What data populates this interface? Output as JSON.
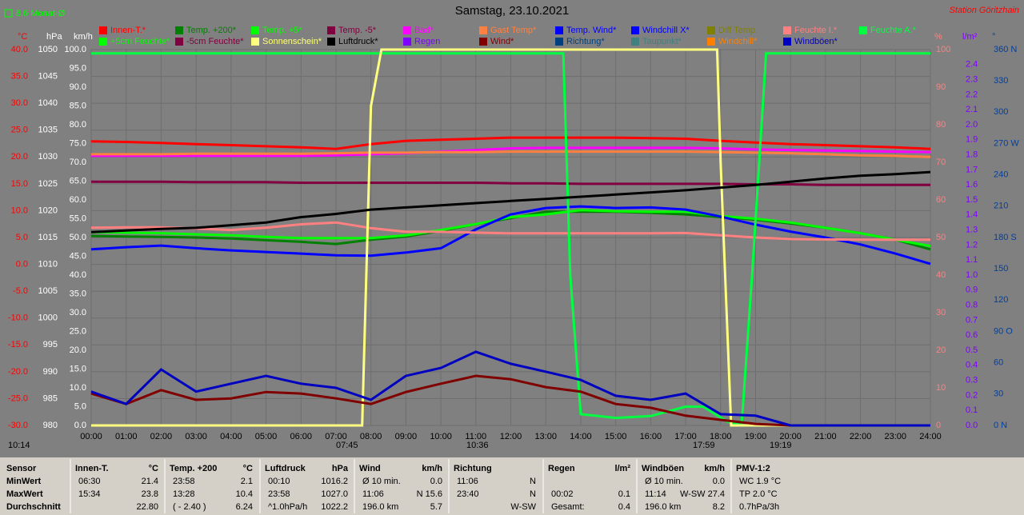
{
  "header": {
    "note": "8.6 Monat-Ø",
    "station": "Station Göritzhain"
  },
  "markers": [
    "10:14",
    "07:45",
    "10:36",
    "17:59",
    "19:19"
  ],
  "chart_data": {
    "type": "line",
    "title": "Samstag, 23.10.2021",
    "xlim": [
      0,
      24
    ],
    "xticks": [
      {
        "value": 0,
        "label": "00:00"
      },
      {
        "value": 1,
        "label": "01:00"
      },
      {
        "value": 2,
        "label": "02:00"
      },
      {
        "value": 3,
        "label": "03:00"
      },
      {
        "value": 4,
        "label": "04:00"
      },
      {
        "value": 5,
        "label": "05:00"
      },
      {
        "value": 6,
        "label": "06:00"
      },
      {
        "value": 7,
        "label": "07:00"
      },
      {
        "value": 8,
        "label": "08:00"
      },
      {
        "value": 9,
        "label": "09:00"
      },
      {
        "value": 10,
        "label": "10:00"
      },
      {
        "value": 11,
        "label": "11:00"
      },
      {
        "value": 12,
        "label": "12:00"
      },
      {
        "value": 13,
        "label": "13:00"
      },
      {
        "value": 14,
        "label": "14:00"
      },
      {
        "value": 15,
        "label": "15:00"
      },
      {
        "value": 16,
        "label": "16:00"
      },
      {
        "value": 17,
        "label": "17:00"
      },
      {
        "value": 18,
        "label": "18:00"
      },
      {
        "value": 19,
        "label": "19:00"
      },
      {
        "value": 20,
        "label": "20:00"
      },
      {
        "value": 21,
        "label": "21:00"
      },
      {
        "value": 22,
        "label": "22:00"
      },
      {
        "value": 23,
        "label": "23:00"
      },
      {
        "value": 24,
        "label": "24:00"
      }
    ],
    "x": [
      0,
      1,
      2,
      3,
      4,
      5,
      6,
      7,
      8,
      9,
      10,
      11,
      12,
      13,
      14,
      15,
      16,
      17,
      18,
      19,
      20,
      21,
      22,
      23,
      24
    ],
    "grid": true,
    "axes": [
      {
        "label": "°C",
        "color": "#ff0000",
        "ylim": [
          -30,
          40
        ],
        "yticks": [
          {
            "value": -30,
            "label": "-30.0"
          },
          {
            "value": -25,
            "label": "-25.0"
          },
          {
            "value": -20,
            "label": "-20.0"
          },
          {
            "value": -15,
            "label": "-15.0"
          },
          {
            "value": -10,
            "label": "-10.0"
          },
          {
            "value": -5,
            "label": "-5.0"
          },
          {
            "value": 0,
            "label": "0.0"
          },
          {
            "value": 5,
            "label": "5.0"
          },
          {
            "value": 10,
            "label": "10.0"
          },
          {
            "value": 15,
            "label": "15.0"
          },
          {
            "value": 20,
            "label": "20.0"
          },
          {
            "value": 25,
            "label": "25.0"
          },
          {
            "value": 30,
            "label": "30.0"
          },
          {
            "value": 35,
            "label": "35.0"
          },
          {
            "value": 40,
            "label": "40.0"
          }
        ]
      },
      {
        "label": "hPa",
        "color": "#ffffff",
        "ylim": [
          980,
          1050
        ],
        "yticks": [
          980,
          985,
          990,
          995,
          1000,
          1005,
          1010,
          1015,
          1020,
          1025,
          1030,
          1035,
          1040,
          1045,
          1050
        ]
      },
      {
        "label": "km/h",
        "color": "#ffffff",
        "ylim": [
          0,
          100
        ],
        "yticks": [
          {
            "value": 0,
            "label": "0.0"
          },
          {
            "value": 5,
            "label": "5.0"
          },
          {
            "value": 10,
            "label": "10.0"
          },
          {
            "value": 15,
            "label": "15.0"
          },
          {
            "value": 20,
            "label": "20.0"
          },
          {
            "value": 25,
            "label": "25.0"
          },
          {
            "value": 30,
            "label": "30.0"
          },
          {
            "value": 35,
            "label": "35.0"
          },
          {
            "value": 40,
            "label": "40.0"
          },
          {
            "value": 45,
            "label": "45.0"
          },
          {
            "value": 50,
            "label": "50.0"
          },
          {
            "value": 55,
            "label": "55.0"
          },
          {
            "value": 60,
            "label": "60.0"
          },
          {
            "value": 65,
            "label": "65.0"
          },
          {
            "value": 70,
            "label": "70.0"
          },
          {
            "value": 75,
            "label": "75.0"
          },
          {
            "value": 80,
            "label": "80.0"
          },
          {
            "value": 85,
            "label": "85.0"
          },
          {
            "value": 90,
            "label": "90.0"
          },
          {
            "value": 95,
            "label": "95.0"
          },
          {
            "value": 100,
            "label": "100.0"
          }
        ]
      },
      {
        "label": "%",
        "color": "#ff8080",
        "ylim": [
          0,
          100
        ],
        "yticks": [
          0,
          10,
          20,
          30,
          40,
          50,
          60,
          70,
          80,
          90,
          100
        ]
      },
      {
        "label": "l/m²",
        "color": "#8000ff",
        "ylim": [
          0,
          2.5
        ],
        "yticks": [
          {
            "value": 0,
            "label": "0.0"
          },
          0.1,
          0.2,
          0.3,
          0.4,
          0.5,
          0.6,
          0.7,
          0.8,
          0.9,
          {
            "value": 1,
            "label": "1.0"
          },
          1.1,
          1.2,
          1.3,
          1.4,
          1.5,
          1.6,
          1.7,
          1.8,
          1.9,
          {
            "value": 2,
            "label": "2.0"
          },
          2.1,
          2.2,
          2.3,
          2.4
        ]
      },
      {
        "label": "°",
        "color": "#0040a0",
        "ylim": [
          0,
          360
        ],
        "yticks": [
          {
            "value": 0,
            "label": "0 N"
          },
          30,
          60,
          {
            "value": 90,
            "label": "90 O"
          },
          120,
          150,
          {
            "value": 180,
            "label": "180 S"
          },
          210,
          240,
          {
            "value": 270,
            "label": "270 W"
          },
          300,
          330,
          {
            "value": 360,
            "label": "360 N"
          }
        ]
      }
    ],
    "series": [
      {
        "name": "Innen-T.*",
        "color": "#ff0000",
        "axis": 0,
        "values": [
          22.9,
          22.8,
          22.6,
          22.4,
          22.2,
          22.0,
          21.8,
          21.5,
          22.4,
          23.0,
          23.2,
          23.4,
          23.6,
          23.6,
          23.6,
          23.6,
          23.5,
          23.4,
          23.0,
          22.7,
          22.4,
          22.2,
          22.0,
          21.8,
          21.5
        ]
      },
      {
        "name": "Temp. +200*",
        "color": "#008000",
        "axis": 0,
        "values": [
          5.3,
          5.2,
          5.1,
          5.0,
          4.8,
          4.5,
          4.2,
          3.8,
          4.6,
          5.2,
          6.2,
          7.5,
          8.6,
          9.8,
          9.8,
          9.8,
          9.6,
          9.3,
          8.8,
          8.3,
          7.6,
          6.8,
          5.8,
          4.6,
          2.8
        ]
      },
      {
        "name": "Temp. +5*",
        "color": "#00ff00",
        "axis": 0,
        "values": [
          6.0,
          5.9,
          5.8,
          5.6,
          5.4,
          5.1,
          4.9,
          4.9,
          4.9,
          5.4,
          6.4,
          7.5,
          8.8,
          9.3,
          10.1,
          9.9,
          9.8,
          9.8,
          9.0,
          8.5,
          7.8,
          6.8,
          5.8,
          4.6,
          3.4
        ]
      },
      {
        "name": "Temp. -5*",
        "color": "#800040",
        "axis": 0,
        "values": [
          15.4,
          15.4,
          15.4,
          15.3,
          15.3,
          15.3,
          15.2,
          15.2,
          15.2,
          15.2,
          15.2,
          15.2,
          15.1,
          15.1,
          15.0,
          15.0,
          15.0,
          15.0,
          15.0,
          14.9,
          14.9,
          14.8,
          14.8,
          14.8,
          14.8
        ]
      },
      {
        "name": "Bad*",
        "color": "#ff00ff",
        "axis": 0,
        "values": [
          20.2,
          20.2,
          20.2,
          20.2,
          20.2,
          20.2,
          20.2,
          20.3,
          20.5,
          20.7,
          21.0,
          21.3,
          21.6,
          21.7,
          21.7,
          21.7,
          21.7,
          21.7,
          21.6,
          21.4,
          21.3,
          21.2,
          21.1,
          21.0,
          20.9
        ]
      },
      {
        "name": "Gast Temp*",
        "color": "#ff8040",
        "axis": 0,
        "values": [
          20.5,
          20.5,
          20.5,
          20.6,
          20.6,
          20.6,
          20.6,
          20.7,
          20.8,
          20.8,
          20.9,
          20.9,
          21.0,
          21.0,
          21.0,
          21.0,
          21.0,
          21.0,
          20.9,
          20.8,
          20.7,
          20.5,
          20.3,
          20.2,
          20.0
        ]
      },
      {
        "name": "Temp. Wind*",
        "color": "#0000ff",
        "axis": 0,
        "values": [
          2.8,
          3.2,
          3.5,
          3.0,
          2.6,
          2.3,
          2.0,
          1.7,
          1.6,
          2.2,
          3.0,
          6.5,
          9.3,
          10.5,
          10.8,
          10.5,
          10.6,
          10.2,
          8.9,
          7.4,
          6.1,
          5.0,
          3.7,
          2.0,
          0.1
        ]
      },
      {
        "name": "Windchill X*",
        "color": "#0000ff",
        "axis": 0
      },
      {
        "name": "Diff Temp.",
        "color": "#808000",
        "axis": 0
      },
      {
        "name": "Feuchte I.*",
        "color": "#ff8080",
        "axis": 3,
        "values": [
          52.6,
          52.7,
          52.7,
          52.4,
          52.0,
          52.6,
          53.5,
          54.0,
          52.5,
          51.5,
          51.5,
          51.3,
          51.1,
          51.1,
          51.1,
          51.1,
          51.1,
          51.2,
          50.6,
          50.0,
          49.6,
          49.5,
          49.4,
          49.4,
          49.4
        ]
      },
      {
        "name": "Feuchte A.*",
        "color": "#00ff40",
        "axis": 3,
        "x": [
          0,
          13.5,
          13.7,
          14,
          15,
          16,
          17,
          17.5,
          18.2,
          18.6,
          18.9,
          19.3,
          24
        ],
        "values": [
          99,
          99,
          40,
          3,
          2,
          2.5,
          5,
          5,
          1,
          0,
          40,
          99,
          99
        ]
      },
      {
        "name": "+5cm Feuchte*",
        "color": "#00ff00",
        "axis": 3
      },
      {
        "name": "-5cm Feuchte*",
        "color": "#800040",
        "axis": 3
      },
      {
        "name": "Sonnenschein*",
        "color": "#ffff80",
        "axis": 3,
        "x": [
          0,
          7.75,
          8,
          8.3,
          17.9,
          18,
          18.3,
          24
        ],
        "values": [
          0,
          0,
          85,
          100,
          100,
          70,
          0,
          0
        ]
      },
      {
        "name": "Luftdruck*",
        "color": "#000000",
        "axis": 1,
        "values": [
          1016.0,
          1016.3,
          1016.6,
          1016.8,
          1017.3,
          1017.8,
          1018.8,
          1019.4,
          1020.2,
          1020.6,
          1021.0,
          1021.4,
          1021.8,
          1022.2,
          1022.6,
          1023.0,
          1023.4,
          1023.8,
          1024.3,
          1024.8,
          1025.4,
          1026.0,
          1026.5,
          1026.8,
          1027.2
        ]
      },
      {
        "name": "Regen",
        "color": "#8000ff",
        "axis": 4
      },
      {
        "name": "Wind*",
        "color": "#800000",
        "axis": 2,
        "values": [
          8.5,
          5.7,
          9.4,
          6.8,
          7.2,
          8.9,
          8.5,
          7.2,
          5.7,
          8.9,
          11.1,
          13.2,
          12.3,
          10.2,
          9.0,
          5.7,
          4.7,
          2.6,
          1.5,
          0.4,
          0,
          0,
          0,
          0,
          0
        ]
      },
      {
        "name": "Richtung*",
        "color": "#004080",
        "axis": 5
      },
      {
        "name": "Taupunkt*",
        "color": "#408080",
        "axis": 0
      },
      {
        "name": "Windchill*",
        "color": "#ff8000",
        "axis": 0
      },
      {
        "name": "Windböen*",
        "color": "#0000c0",
        "axis": 2,
        "values": [
          9.0,
          5.7,
          14.9,
          9.0,
          11.1,
          13.2,
          11.1,
          10.0,
          6.8,
          13.2,
          15.3,
          19.6,
          16.4,
          14.3,
          12.1,
          7.9,
          6.8,
          8.5,
          3.0,
          2.6,
          0,
          0,
          0,
          0,
          0
        ]
      }
    ]
  },
  "table": {
    "sensor_labels": [
      "Sensor",
      "MinWert",
      "MaxWert",
      "Durchschnitt"
    ],
    "columns": [
      {
        "name": "Innen-T.",
        "unit": "°C",
        "rows": [
          {
            "left": "06:30",
            "right": "21.4"
          },
          {
            "left": "15:34",
            "right": "23.8"
          },
          {
            "right": "22.80"
          }
        ]
      },
      {
        "name": "Temp. +200",
        "unit": "°C",
        "rows": [
          {
            "left": "23:58",
            "right": "2.1"
          },
          {
            "left": "13:28",
            "right": "10.4"
          },
          {
            "left": "( - 2.40 )",
            "right": "6.24"
          }
        ]
      },
      {
        "name": "Luftdruck",
        "unit": "hPa",
        "rows": [
          {
            "left": "00:10",
            "right": "1016.2"
          },
          {
            "left": "23:58",
            "right": "1027.0"
          },
          {
            "left": "^1.0hPa/h",
            "right": "1022.2"
          }
        ]
      },
      {
        "name": "Wind",
        "unit": "km/h",
        "rows": [
          {
            "left": "Ø 10 min.",
            "right": "0.0"
          },
          {
            "left": "11:06",
            "right": "N 15.6"
          },
          {
            "left": "196.0 km",
            "right": "5.7"
          }
        ]
      },
      {
        "name": "Richtung",
        "rows": [
          {
            "left": "11:06",
            "right": "N"
          },
          {
            "left": "23:40",
            "right": "N"
          },
          {
            "right": "W-SW"
          }
        ]
      },
      {
        "name": "Regen",
        "unit": "l/m²",
        "rows": [
          null,
          {
            "left": "00:02",
            "right": "0.1"
          },
          {
            "left": "Gesamt:",
            "right": "0.4"
          }
        ]
      },
      {
        "name": "Windböen",
        "unit": "km/h",
        "rows": [
          {
            "left": "Ø 10 min.",
            "right": "0.0"
          },
          {
            "left": "11:14",
            "right": "W-SW 27.4"
          },
          {
            "left": "196.0 km",
            "right": "8.2"
          }
        ]
      },
      {
        "name": "PMV-1:2",
        "rows": [
          {
            "left": "WC 1.9 °C"
          },
          {
            "left": "TP 2.0 °C"
          },
          {
            "left": "0.7hPa/3h"
          }
        ]
      }
    ]
  }
}
